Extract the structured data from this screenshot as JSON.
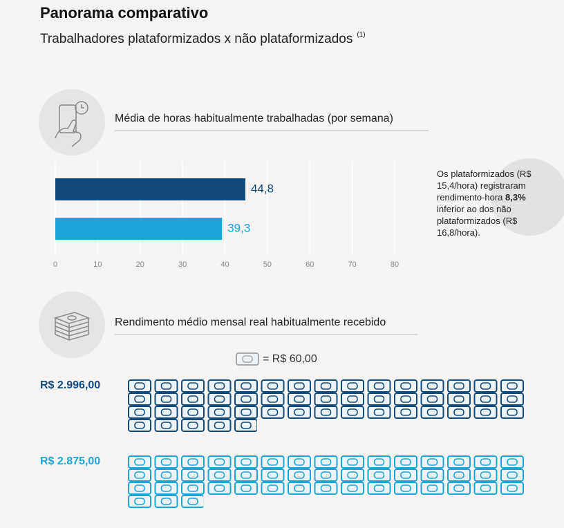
{
  "header": {
    "title": "Panorama comparativo",
    "subtitle": "Trabalhadores plataformizados x não plataformizados",
    "footnote": "(1)"
  },
  "note": {
    "before": "Os plataformizados (R$ 15,4/hora) registraram rendimento-hora",
    "bold": "8,3%",
    "after": "inferior ao dos não plataformizados (R$ 16,8/hora)."
  },
  "chart_data": [
    {
      "type": "bar",
      "orientation": "horizontal",
      "title": "Média de horas habitualmente trabalhadas (por semana)",
      "categories": [
        null,
        null
      ],
      "values": [
        44.8,
        39.3
      ],
      "value_labels": [
        "44,8",
        "39,3"
      ],
      "colors": [
        "#134a7c",
        "#1ba5d8"
      ],
      "xlim": [
        0,
        80
      ],
      "xticks": [
        0,
        10,
        20,
        30,
        40,
        50,
        60,
        70,
        80
      ],
      "grid": true
    },
    {
      "type": "pictogram",
      "title": "Rendimento médio mensal real habitualmente recebido",
      "unit": 60,
      "unit_label": "= R$ 60,00",
      "per_row": 15,
      "categories": [
        null,
        null
      ],
      "values": [
        2996,
        2875
      ],
      "value_labels": [
        "R$ 2.996,00",
        "R$ 2.875,00"
      ],
      "colors": [
        "#134a7c",
        "#1ba5d8"
      ]
    }
  ]
}
